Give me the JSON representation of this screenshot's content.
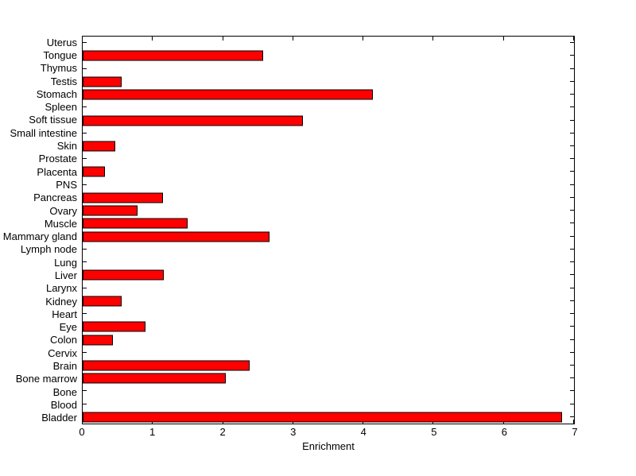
{
  "figure": {
    "background": "#FFFFFF"
  },
  "chart_data": {
    "type": "bar",
    "orientation": "horizontal",
    "title": "",
    "xlabel": "Enrichment",
    "ylabel": "",
    "xlim": [
      0,
      7
    ],
    "x_ticks": [
      "0",
      "1",
      "2",
      "3",
      "4",
      "5",
      "6",
      "7"
    ],
    "grid": false,
    "legend": null,
    "bar_color": "#FF0000",
    "bar_edge_color": "#000000",
    "axis_color": "#000000",
    "categories": [
      "Uterus",
      "Tongue",
      "Thymus",
      "Testis",
      "Stomach",
      "Spleen",
      "Soft tissue",
      "Small intestine",
      "Skin",
      "Prostate",
      "Placenta",
      "PNS",
      "Pancreas",
      "Ovary",
      "Muscle",
      "Mammary gland",
      "Lymph node",
      "Lung",
      "Liver",
      "Larynx",
      "Kidney",
      "Heart",
      "Eye",
      "Colon",
      "Cervix",
      "Brain",
      "Bone marrow",
      "Bone",
      "Blood",
      "Bladder"
    ],
    "values": [
      0,
      2.57,
      0,
      0.56,
      4.13,
      0,
      3.14,
      0,
      0.47,
      0,
      0.32,
      0,
      1.14,
      0.78,
      1.5,
      2.66,
      0,
      0,
      1.15,
      0,
      0.55,
      0,
      0.89,
      0.43,
      0,
      2.38,
      2.04,
      0,
      0,
      6.83
    ]
  }
}
